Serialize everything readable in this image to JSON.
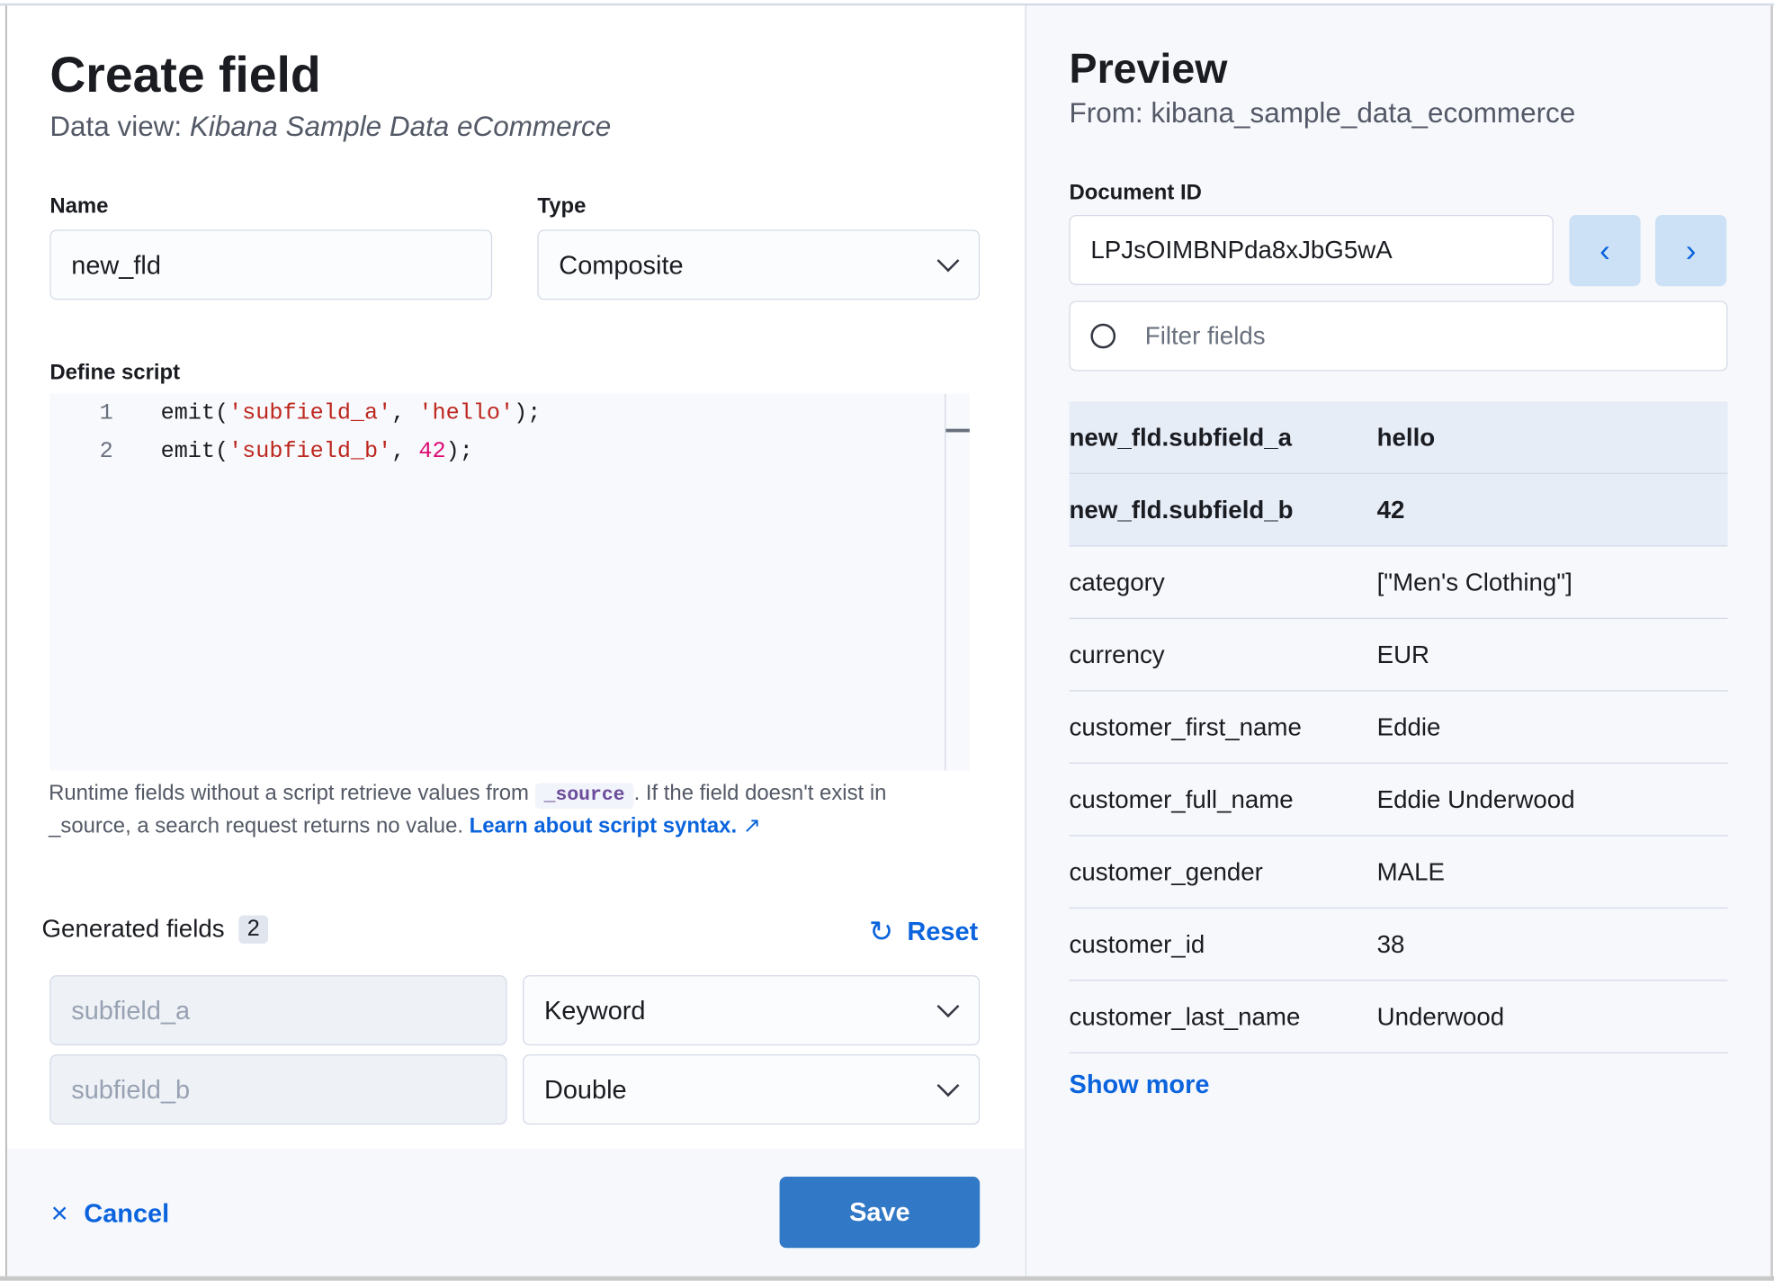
{
  "left": {
    "title": "Create field",
    "subtitle_prefix": "Data view: ",
    "subtitle_view": "Kibana Sample Data eCommerce",
    "name_label": "Name",
    "name_value": "new_fld",
    "type_label": "Type",
    "type_value": "Composite",
    "script_label": "Define script",
    "script_lines": [
      {
        "n": "1",
        "pre": "emit(",
        "s1": "'subfield_a'",
        "mid": ", ",
        "s2": "'hello'",
        "post": ");"
      },
      {
        "n": "2",
        "pre": "emit(",
        "s1": "'subfield_b'",
        "mid": ", ",
        "s2": "42",
        "post": ");"
      }
    ],
    "help_1": "Runtime fields without a script retrieve values from",
    "help_code": "_source",
    "help_2": ". If the field doesn't exist in",
    "help_3": "_source, a search request returns no value.",
    "help_link": "Learn about script syntax.",
    "generated_label": "Generated fields",
    "generated_count": "2",
    "reset_label": "Reset",
    "generated": [
      {
        "name": "subfield_a",
        "type": "Keyword"
      },
      {
        "name": "subfield_b",
        "type": "Double"
      }
    ],
    "cancel_label": "Cancel",
    "save_label": "Save"
  },
  "right": {
    "title": "Preview",
    "from": "From: kibana_sample_data_ecommerce",
    "doc_id_label": "Document ID",
    "doc_id_value": "LPJsOIMBNPda8xJbG5wA",
    "filter_placeholder": "Filter fields",
    "fields": [
      {
        "k": "new_fld.subfield_a",
        "v": "hello",
        "highlight": true
      },
      {
        "k": "new_fld.subfield_b",
        "v": "42",
        "highlight": true
      },
      {
        "k": "category",
        "v": "[\"Men's Clothing\"]"
      },
      {
        "k": "currency",
        "v": "EUR"
      },
      {
        "k": "customer_first_name",
        "v": "Eddie"
      },
      {
        "k": "customer_full_name",
        "v": "Eddie Underwood"
      },
      {
        "k": "customer_gender",
        "v": "MALE"
      },
      {
        "k": "customer_id",
        "v": "38"
      },
      {
        "k": "customer_last_name",
        "v": "Underwood"
      }
    ],
    "show_more": "Show more"
  },
  "colors": {
    "accent": "#0b64dd",
    "primary_button": "#3178c6",
    "highlight_row": "#e6edf7",
    "string": "#bd271e",
    "number": "#dd0a73"
  }
}
